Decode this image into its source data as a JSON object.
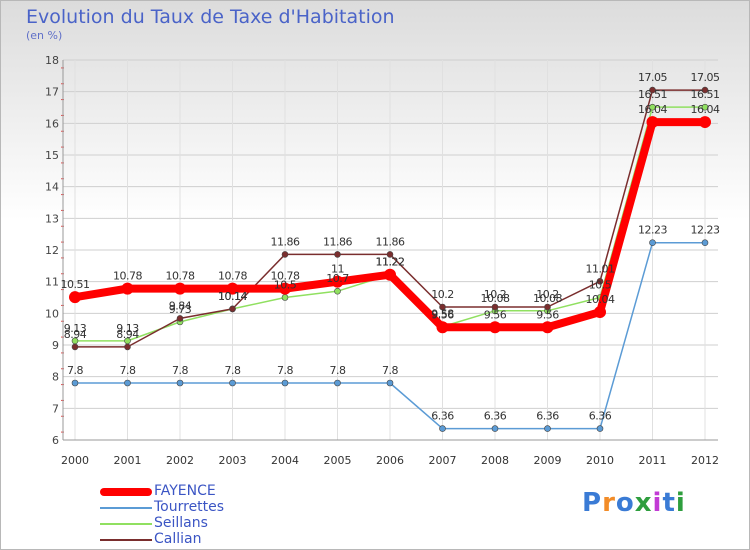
{
  "chart_data": {
    "type": "line",
    "title": "Evolution du Taux de Taxe d'Habitation",
    "unit_label": "(en %)",
    "x": [
      "2000",
      "2001",
      "2002",
      "2003",
      "2004",
      "2005",
      "2006",
      "2007",
      "2008",
      "2009",
      "2010",
      "2011",
      "2012"
    ],
    "ylim": [
      6,
      18
    ],
    "yticks": [
      "6",
      "7",
      "8",
      "9",
      "10",
      "11",
      "12",
      "13",
      "14",
      "15",
      "16",
      "17",
      "18"
    ],
    "series": [
      {
        "name": "FAYENCE",
        "color": "#ff0000",
        "values": [
          10.51,
          10.78,
          10.78,
          10.78,
          10.78,
          11,
          11.22,
          9.56,
          9.56,
          9.56,
          10.04,
          16.04,
          16.04
        ],
        "labels": [
          "10.51",
          "10.78",
          "10.78",
          "10.78",
          "10.78",
          "11",
          "11.22",
          "9.56",
          "9.56",
          "9.56",
          "10.04",
          "16.04",
          "16.04"
        ]
      },
      {
        "name": "Tourrettes",
        "color": "#5b9bd5",
        "values": [
          7.8,
          7.8,
          7.8,
          7.8,
          7.8,
          7.8,
          7.8,
          6.36,
          6.36,
          6.36,
          6.36,
          12.23,
          12.23
        ],
        "labels": [
          "7.8",
          "7.8",
          "7.8",
          "7.8",
          "7.8",
          "7.8",
          "7.8",
          "6.36",
          "6.36",
          "6.36",
          "6.36",
          "12.23",
          "12.23"
        ]
      },
      {
        "name": "Seillans",
        "color": "#90e060",
        "values": [
          9.13,
          9.13,
          9.73,
          10.14,
          10.5,
          10.7,
          11.22,
          9.58,
          10.08,
          10.08,
          10.5,
          16.51,
          16.51
        ],
        "labels": [
          "9.13",
          "9.13",
          "9.73",
          "10.14",
          "10.5",
          "10.7",
          "11.22",
          "9.58",
          "10.08",
          "10.08",
          "10.5",
          "16.51",
          "16.51"
        ]
      },
      {
        "name": "Callian",
        "color": "#7a2e2e",
        "values": [
          8.94,
          8.94,
          9.84,
          10.14,
          11.86,
          11.86,
          11.86,
          10.2,
          10.2,
          10.2,
          11.01,
          17.05,
          17.05
        ],
        "labels": [
          "8.94",
          "8.94",
          "9.84",
          "10.14",
          "11.86",
          "11.86",
          "11.86",
          "10.2",
          "10.2",
          "10.2",
          "11.01",
          "17.05",
          "17.05"
        ]
      }
    ]
  },
  "legend": {
    "items": [
      {
        "label": "FAYENCE",
        "color": "#ff0000"
      },
      {
        "label": "Tourrettes",
        "color": "#5b9bd5"
      },
      {
        "label": "Seillans",
        "color": "#90e060"
      },
      {
        "label": "Callian",
        "color": "#7a2e2e"
      }
    ]
  },
  "logo": {
    "text": "Proxiti",
    "colors": [
      "#3a7bd5",
      "#f28c28",
      "#3a7bd5",
      "#2e9e3e",
      "#c23bd5",
      "#3a7bd5",
      "#2e9e3e"
    ]
  }
}
